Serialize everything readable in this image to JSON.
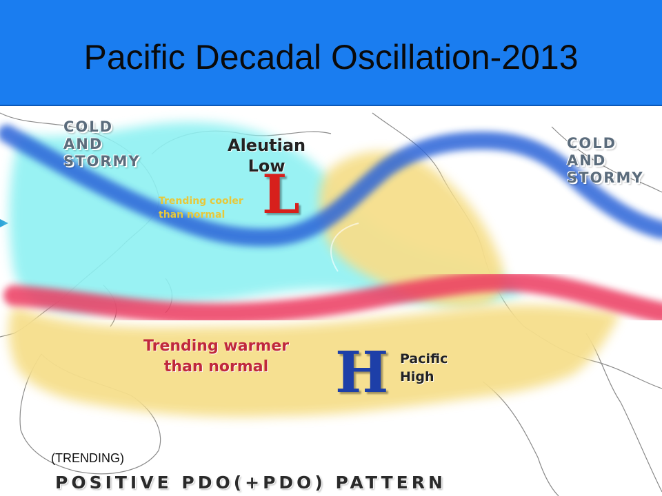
{
  "title": "Pacific Decadal Oscillation-2013",
  "map": {
    "labels": {
      "cold_stormy_left": [
        "COLD",
        "AND",
        "STORMY"
      ],
      "cold_stormy_right": [
        "COLD",
        "AND",
        "STORMY"
      ],
      "aleutian_low": [
        "Aleutian",
        "Low"
      ],
      "low_symbol": "L",
      "trending_cooler": [
        "Trending cooler",
        "than normal"
      ],
      "trending_warmer": [
        "Trending warmer",
        "than normal"
      ],
      "high_symbol": "H",
      "pacific_high": [
        "Pacific",
        "High"
      ]
    },
    "colors": {
      "cold_band": "#2a64d8",
      "cool_region": "#8ef1f2",
      "warm_band": "#ec3b60",
      "warm_region": "#f6df8c",
      "land_outline": "#888888",
      "low_red": "#d7201c",
      "high_blue": "#1d3fa8",
      "warmer_text": "#c0283c",
      "cooler_text": "#e7c83a"
    }
  },
  "caption": "(TRENDING)",
  "pattern_title": "POSITIVE PDO(+PDO) PATTERN"
}
